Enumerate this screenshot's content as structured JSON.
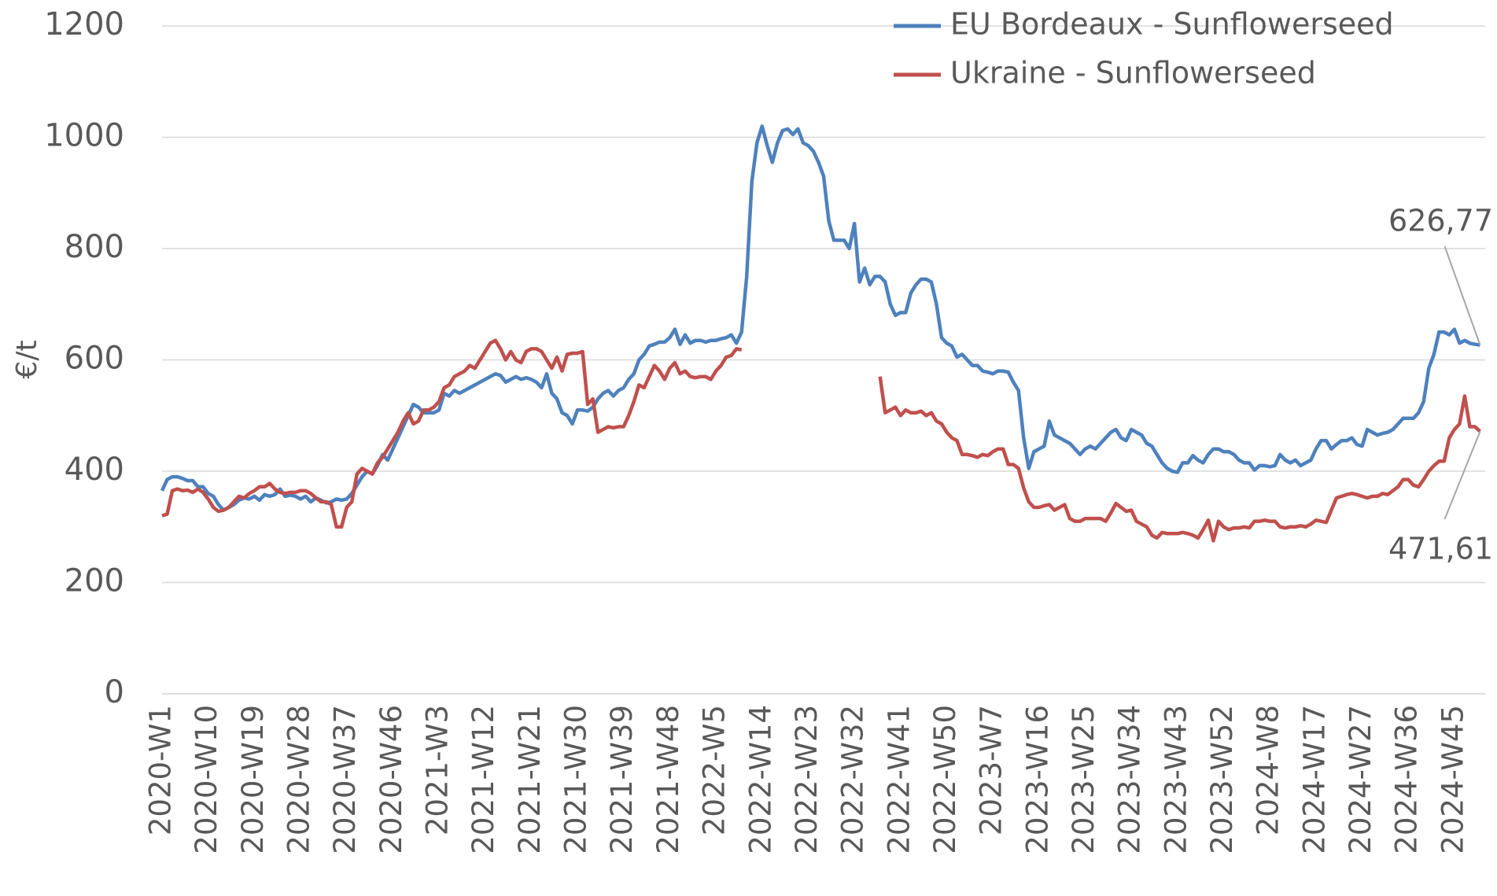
{
  "chart_data": {
    "type": "line",
    "ylabel": "€/t",
    "ylim": [
      0,
      1200
    ],
    "yticks": [
      0,
      200,
      400,
      600,
      800,
      1000,
      1200
    ],
    "grid": true,
    "legend": "upper right",
    "categories": [
      "2020-W1",
      null,
      null,
      null,
      null,
      null,
      null,
      null,
      null,
      "2020-W10",
      null,
      null,
      null,
      null,
      null,
      null,
      null,
      null,
      "2020-W19",
      null,
      null,
      null,
      null,
      null,
      null,
      null,
      null,
      "2020-W28",
      null,
      null,
      null,
      null,
      null,
      null,
      null,
      null,
      "2020-W37",
      null,
      null,
      null,
      null,
      null,
      null,
      null,
      null,
      "2020-W46",
      null,
      null,
      null,
      null,
      null,
      null,
      null,
      null,
      "2021-W3",
      null,
      null,
      null,
      null,
      null,
      null,
      null,
      null,
      "2021-W12",
      null,
      null,
      null,
      null,
      null,
      null,
      null,
      null,
      "2021-W21",
      null,
      null,
      null,
      null,
      null,
      null,
      null,
      null,
      "2021-W30",
      null,
      null,
      null,
      null,
      null,
      null,
      null,
      null,
      "2021-W39",
      null,
      null,
      null,
      null,
      null,
      null,
      null,
      null,
      "2021-W48",
      null,
      null,
      null,
      null,
      null,
      null,
      null,
      null,
      "2022-W5",
      null,
      null,
      null,
      null,
      null,
      null,
      null,
      null,
      "2022-W14",
      null,
      null,
      null,
      null,
      null,
      null,
      null,
      null,
      "2022-W23",
      null,
      null,
      null,
      null,
      null,
      null,
      null,
      null,
      "2022-W32",
      null,
      null,
      null,
      null,
      null,
      null,
      null,
      null,
      "2022-W41",
      null,
      null,
      null,
      null,
      null,
      null,
      null,
      null,
      "2022-W50",
      null,
      null,
      null,
      null,
      null,
      null,
      null,
      null,
      "2023-W7",
      null,
      null,
      null,
      null,
      null,
      null,
      null,
      null,
      "2023-W16",
      null,
      null,
      null,
      null,
      null,
      null,
      null,
      null,
      "2023-W25",
      null,
      null,
      null,
      null,
      null,
      null,
      null,
      null,
      "2023-W34",
      null,
      null,
      null,
      null,
      null,
      null,
      null,
      null,
      "2023-W43",
      null,
      null,
      null,
      null,
      null,
      null,
      null,
      null,
      "2023-W52",
      null,
      null,
      null,
      null,
      null,
      null,
      null,
      null,
      "2024-W8",
      null,
      null,
      null,
      null,
      null,
      null,
      null,
      null,
      "2024-W17",
      null,
      null,
      null,
      null,
      null,
      null,
      null,
      null,
      "2024-W27",
      null,
      null,
      null,
      null,
      null,
      null,
      null,
      null,
      "2024-W36",
      null,
      null,
      null,
      null,
      null,
      null,
      null,
      null,
      "2024-W45",
      null,
      null,
      null,
      null,
      null
    ],
    "series": [
      {
        "name": "EU Bordeaux - Sunflowerseed",
        "color": "#4e81bd",
        "values": [
          365,
          385,
          390,
          390,
          387,
          383,
          383,
          372,
          372,
          360,
          355,
          340,
          330,
          335,
          340,
          348,
          352,
          350,
          355,
          348,
          358,
          355,
          358,
          368,
          355,
          357,
          355,
          350,
          355,
          345,
          352,
          348,
          343,
          345,
          350,
          348,
          350,
          360,
          375,
          390,
          400,
          395,
          410,
          430,
          420,
          440,
          460,
          480,
          500,
          520,
          515,
          505,
          505,
          505,
          510,
          540,
          535,
          545,
          540,
          545,
          550,
          555,
          560,
          565,
          570,
          575,
          572,
          560,
          565,
          570,
          565,
          568,
          565,
          560,
          550,
          575,
          540,
          530,
          505,
          500,
          485,
          510,
          510,
          508,
          515,
          530,
          540,
          545,
          535,
          545,
          550,
          565,
          575,
          600,
          610,
          625,
          628,
          632,
          632,
          640,
          655,
          628,
          645,
          630,
          635,
          635,
          632,
          635,
          635,
          638,
          640,
          645,
          630,
          650,
          750,
          920,
          990,
          1020,
          985,
          955,
          990,
          1012,
          1015,
          1005,
          1015,
          990,
          985,
          975,
          955,
          930,
          850,
          815,
          815,
          815,
          800,
          845,
          740,
          765,
          735,
          750,
          750,
          740,
          700,
          680,
          685,
          685,
          720,
          735,
          745,
          745,
          740,
          700,
          640,
          630,
          625,
          605,
          610,
          600,
          590,
          590,
          580,
          578,
          575,
          580,
          580,
          578,
          560,
          545,
          460,
          405,
          435,
          440,
          445,
          490,
          465,
          460,
          455,
          450,
          440,
          430,
          440,
          445,
          440,
          450,
          460,
          470,
          475,
          460,
          455,
          475,
          470,
          465,
          450,
          445,
          430,
          415,
          405,
          400,
          398,
          415,
          415,
          428,
          420,
          415,
          430,
          440,
          440,
          435,
          435,
          430,
          420,
          415,
          415,
          402,
          410,
          410,
          408,
          410,
          430,
          420,
          415,
          420,
          410,
          415,
          420,
          440,
          455,
          455,
          440,
          448,
          455,
          455,
          460,
          448,
          445,
          475,
          470,
          465,
          468,
          470,
          475,
          485,
          495,
          495,
          495,
          505,
          525,
          585,
          610,
          650,
          650,
          645,
          655,
          630,
          635,
          630,
          628,
          626.77
        ],
        "value_labels": [
          null,
          null,
          null,
          null,
          null,
          null,
          null,
          null,
          null,
          null,
          null,
          null,
          null,
          null,
          null,
          null,
          null,
          null,
          null,
          null,
          null,
          null,
          null,
          null,
          null,
          null,
          null,
          null,
          null,
          null,
          null,
          null,
          null,
          null,
          null,
          null,
          null,
          null,
          null,
          null,
          null,
          null,
          null,
          null,
          null,
          null,
          null,
          null,
          null,
          null,
          null,
          null,
          null,
          null,
          null,
          null,
          null,
          null,
          null,
          null,
          null,
          null,
          null,
          null,
          null,
          null,
          null,
          null,
          null,
          null,
          null,
          null,
          null,
          null,
          null,
          null,
          null,
          null,
          null,
          null,
          null,
          null,
          null,
          null,
          null,
          null,
          null,
          null,
          null,
          null,
          null,
          null,
          null,
          null,
          null,
          null,
          null,
          null,
          null,
          null,
          null,
          null,
          null,
          null,
          null,
          null,
          null,
          null,
          null,
          null,
          null,
          null,
          null,
          null,
          null,
          null,
          null,
          null,
          null,
          null,
          null,
          null,
          null,
          null,
          null,
          null,
          null,
          null,
          null,
          null,
          null,
          null,
          null,
          null,
          null,
          null,
          null,
          null,
          null,
          null,
          null,
          null,
          null,
          null,
          null,
          null,
          null,
          null,
          null,
          null,
          null,
          null,
          null,
          null,
          null,
          null,
          null,
          null,
          null,
          null,
          null,
          null,
          null,
          null,
          null,
          null,
          null,
          null,
          null,
          null,
          null,
          null,
          null,
          null,
          null,
          null,
          null,
          null,
          null,
          null,
          null,
          null,
          null,
          null,
          null,
          null,
          null,
          null,
          null,
          null,
          null,
          null,
          null,
          null,
          null,
          null,
          null,
          null,
          null,
          null,
          null,
          null,
          null,
          null,
          null,
          null,
          null,
          null,
          null,
          null,
          null,
          null,
          null,
          null,
          null,
          null,
          null,
          null,
          null,
          null,
          null,
          null,
          null,
          null,
          null,
          null,
          null,
          null,
          null,
          null,
          null,
          null,
          null,
          null,
          null,
          null,
          null,
          null,
          null,
          null,
          null,
          null,
          null,
          null,
          null,
          null,
          null,
          null,
          null,
          null,
          null,
          null,
          null,
          null,
          null,
          null,
          null,
          "626,77"
        ]
      },
      {
        "name": "Ukraine - Sunflowerseed",
        "color": "#c0504d",
        "values": [
          320,
          323,
          365,
          368,
          365,
          366,
          362,
          368,
          362,
          350,
          335,
          328,
          330,
          335,
          345,
          355,
          352,
          360,
          365,
          372,
          372,
          378,
          368,
          362,
          360,
          362,
          362,
          365,
          365,
          360,
          352,
          345,
          345,
          340,
          300,
          300,
          335,
          345,
          395,
          405,
          400,
          395,
          415,
          425,
          440,
          455,
          470,
          490,
          505,
          485,
          490,
          510,
          510,
          515,
          525,
          550,
          555,
          570,
          575,
          580,
          590,
          585,
          600,
          615,
          630,
          635,
          620,
          600,
          615,
          600,
          595,
          615,
          620,
          620,
          615,
          600,
          585,
          605,
          580,
          610,
          612,
          612,
          615,
          520,
          530,
          470,
          475,
          480,
          478,
          480,
          480,
          500,
          525,
          555,
          550,
          570,
          590,
          580,
          565,
          585,
          595,
          575,
          580,
          570,
          568,
          570,
          570,
          565,
          580,
          590,
          605,
          608,
          620,
          618,
          null,
          null,
          null,
          null,
          null,
          null,
          null,
          null,
          null,
          null,
          null,
          null,
          null,
          null,
          null,
          null,
          null,
          null,
          null,
          null,
          null,
          null,
          null,
          null,
          null,
          null,
          570,
          505,
          510,
          515,
          500,
          510,
          505,
          505,
          508,
          500,
          505,
          490,
          485,
          470,
          460,
          455,
          430,
          430,
          428,
          425,
          430,
          428,
          435,
          440,
          440,
          412,
          412,
          405,
          370,
          345,
          335,
          335,
          338,
          340,
          330,
          335,
          340,
          315,
          310,
          310,
          315,
          315,
          315,
          315,
          310,
          325,
          342,
          335,
          328,
          330,
          310,
          305,
          300,
          285,
          280,
          290,
          288,
          288,
          288,
          290,
          288,
          285,
          280,
          295,
          312,
          275,
          310,
          300,
          295,
          298,
          298,
          300,
          298,
          310,
          310,
          312,
          310,
          310,
          300,
          298,
          300,
          300,
          302,
          300,
          305,
          312,
          310,
          308,
          330,
          352,
          355,
          358,
          360,
          358,
          355,
          352,
          355,
          355,
          360,
          358,
          365,
          372,
          385,
          385,
          375,
          372,
          385,
          400,
          410,
          418,
          418,
          460,
          475,
          485,
          535,
          480,
          480,
          471.61
        ],
        "value_labels": [
          null,
          null,
          null,
          null,
          null,
          null,
          null,
          null,
          null,
          null,
          null,
          null,
          null,
          null,
          null,
          null,
          null,
          null,
          null,
          null,
          null,
          null,
          null,
          null,
          null,
          null,
          null,
          null,
          null,
          null,
          null,
          null,
          null,
          null,
          null,
          null,
          null,
          null,
          null,
          null,
          null,
          null,
          null,
          null,
          null,
          null,
          null,
          null,
          null,
          null,
          null,
          null,
          null,
          null,
          null,
          null,
          null,
          null,
          null,
          null,
          null,
          null,
          null,
          null,
          null,
          null,
          null,
          null,
          null,
          null,
          null,
          null,
          null,
          null,
          null,
          null,
          null,
          null,
          null,
          null,
          null,
          null,
          null,
          null,
          null,
          null,
          null,
          null,
          null,
          null,
          null,
          null,
          null,
          null,
          null,
          null,
          null,
          null,
          null,
          null,
          null,
          null,
          null,
          null,
          null,
          null,
          null,
          null,
          null,
          null,
          null,
          null,
          null,
          null,
          null,
          null,
          null,
          null,
          null,
          null,
          null,
          null,
          null,
          null,
          null,
          null,
          null,
          null,
          null,
          null,
          null,
          null,
          null,
          null,
          null,
          null,
          null,
          null,
          null,
          null,
          null,
          null,
          null,
          null,
          null,
          null,
          null,
          null,
          null,
          null,
          null,
          null,
          null,
          null,
          null,
          null,
          null,
          null,
          null,
          null,
          null,
          null,
          null,
          null,
          null,
          null,
          null,
          null,
          null,
          null,
          null,
          null,
          null,
          null,
          null,
          null,
          null,
          null,
          null,
          null,
          null,
          null,
          null,
          null,
          null,
          null,
          null,
          null,
          null,
          null,
          null,
          null,
          null,
          null,
          null,
          null,
          null,
          null,
          null,
          null,
          null,
          null,
          null,
          null,
          null,
          null,
          null,
          null,
          null,
          null,
          null,
          null,
          null,
          null,
          null,
          null,
          null,
          null,
          null,
          null,
          null,
          null,
          null,
          null,
          null,
          null,
          null,
          null,
          null,
          null,
          null,
          null,
          null,
          null,
          null,
          null,
          null,
          null,
          null,
          null,
          null,
          null,
          null,
          null,
          null,
          null,
          null,
          null,
          null,
          null,
          null,
          null,
          null,
          null,
          null,
          null,
          null,
          "471,61"
        ]
      }
    ]
  }
}
